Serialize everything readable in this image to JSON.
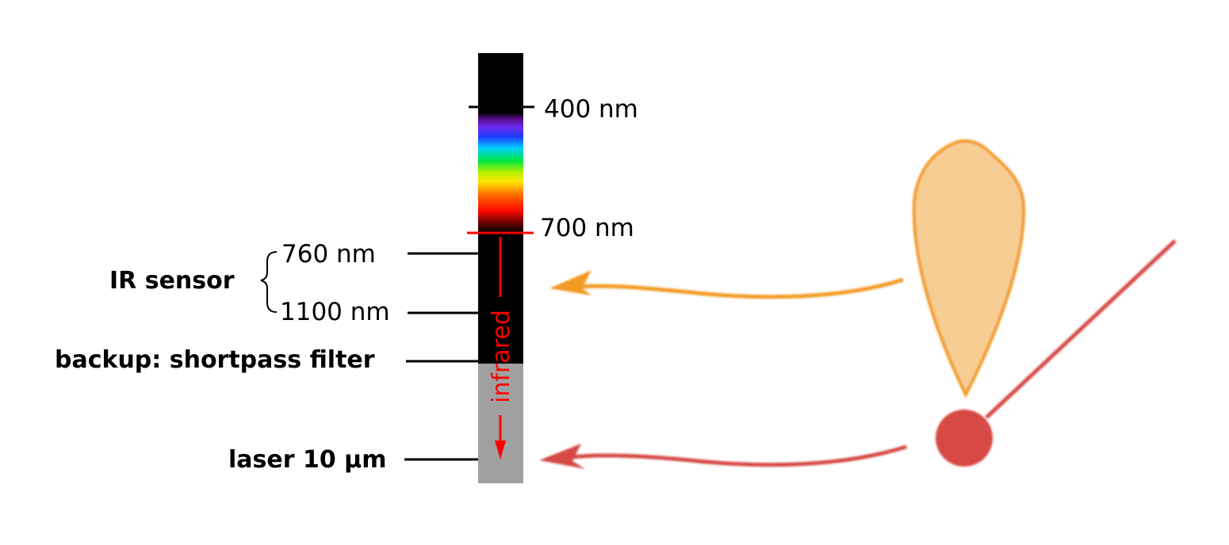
{
  "spectrum": {
    "ticks": {
      "nm400": "400 nm",
      "nm700": "700 nm",
      "nm760": "760 nm",
      "nm1100": "1100 nm"
    },
    "infrared_label": "infrared"
  },
  "labels": {
    "ir_sensor": "IR sensor",
    "backup": "backup: shortpass filter",
    "laser": "laser 10 µm"
  },
  "colors": {
    "background": "#ffffff",
    "strip_dark": "#000000",
    "strip_gray": "#a0a0a0",
    "infrared_red": "#ff0000",
    "flame_fill": "#f7cd94",
    "flame_stroke": "#f29a24",
    "laser_red": "#d64a45"
  },
  "icons": {
    "flame": "flame-icon",
    "laser_source": "laser-dot-icon"
  }
}
